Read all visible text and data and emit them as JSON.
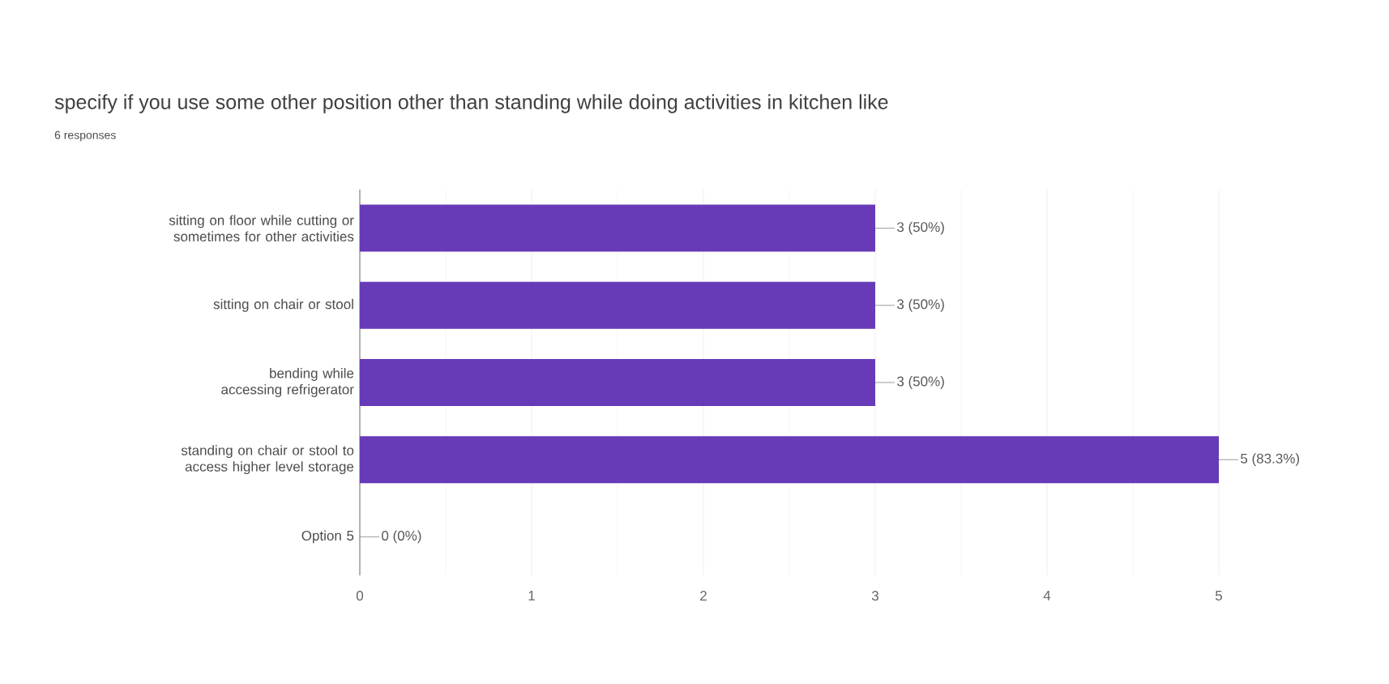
{
  "chart_data": {
    "type": "bar",
    "orientation": "horizontal",
    "title": "specify if you use some other position other than standing while doing activities in kitchen like",
    "subtitle": "6 responses",
    "categories": [
      "sitting on floor while cutting or sometimes for other activities",
      "sitting on chair or stool",
      "bending while accessing refrigerator",
      "standing on chair or stool to access higher level storage",
      "Option 5"
    ],
    "values": [
      3,
      3,
      3,
      5,
      0
    ],
    "value_labels": [
      "3 (50%)",
      "3 (50%)",
      "3 (50%)",
      "5 (83.3%)",
      "0 (0%)"
    ],
    "color": "#673ab7",
    "xlim": [
      0,
      5
    ],
    "xticks": [
      0,
      1,
      2,
      3,
      4,
      5
    ],
    "grid": "x"
  }
}
